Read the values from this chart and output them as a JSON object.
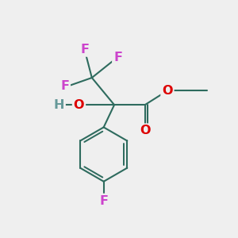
{
  "background_color": "#EFEFEF",
  "bond_color": "#2E6B5E",
  "bond_width": 1.5,
  "atom_colors": {
    "F": "#CC44CC",
    "O": "#DD0000",
    "H": "#669999",
    "C": "#2E6B5E"
  },
  "font_size": 11.5
}
